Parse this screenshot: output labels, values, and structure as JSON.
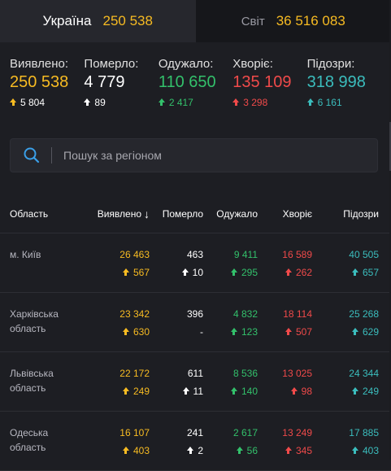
{
  "tabs": [
    {
      "name": "Україна",
      "value": "250 538"
    },
    {
      "name": "Світ",
      "value": "36 516 083"
    }
  ],
  "summary": [
    {
      "label": "Виявлено:",
      "value": "250 538",
      "delta": "5 804",
      "color": "yellow"
    },
    {
      "label": "Померло:",
      "value": "4 779",
      "delta": "89",
      "color": "white"
    },
    {
      "label": "Одужало:",
      "value": "110 650",
      "delta": "2 417",
      "color": "green"
    },
    {
      "label": "Хворіє:",
      "value": "135 109",
      "delta": "3 298",
      "color": "red"
    },
    {
      "label": "Підозри:",
      "value": "318 998",
      "delta": "6 161",
      "color": "teal"
    }
  ],
  "search": {
    "placeholder": "Пошук за регіоном"
  },
  "table": {
    "headers": {
      "region": "Область",
      "confirmed": "Виявлено",
      "deaths": "Померло",
      "recovered": "Одужало",
      "sick": "Хворіє",
      "suspected": "Підозри"
    },
    "rows": [
      {
        "region": "м. Київ",
        "confirmed": "26 463",
        "confirmed_d": "567",
        "deaths": "463",
        "deaths_d": "10",
        "recovered": "9 411",
        "recovered_d": "295",
        "sick": "16 589",
        "sick_d": "262",
        "suspected": "40 505",
        "suspected_d": "657"
      },
      {
        "region": "Харківська область",
        "confirmed": "23 342",
        "confirmed_d": "630",
        "deaths": "396",
        "deaths_d": "-",
        "recovered": "4 832",
        "recovered_d": "123",
        "sick": "18 114",
        "sick_d": "507",
        "suspected": "25 268",
        "suspected_d": "629"
      },
      {
        "region": "Львівська область",
        "confirmed": "22 172",
        "confirmed_d": "249",
        "deaths": "611",
        "deaths_d": "11",
        "recovered": "8 536",
        "recovered_d": "140",
        "sick": "13 025",
        "sick_d": "98",
        "suspected": "24 344",
        "suspected_d": "249"
      },
      {
        "region": "Одеська область",
        "confirmed": "16 107",
        "confirmed_d": "403",
        "deaths": "241",
        "deaths_d": "2",
        "recovered": "2 617",
        "recovered_d": "56",
        "sick": "13 249",
        "sick_d": "345",
        "suspected": "17 885",
        "suspected_d": "403"
      }
    ]
  },
  "colors": {
    "yellow": "#f7bb22",
    "white": "#ffffff",
    "green": "#33c06b",
    "red": "#f04a4a",
    "teal": "#3bbdbd"
  }
}
